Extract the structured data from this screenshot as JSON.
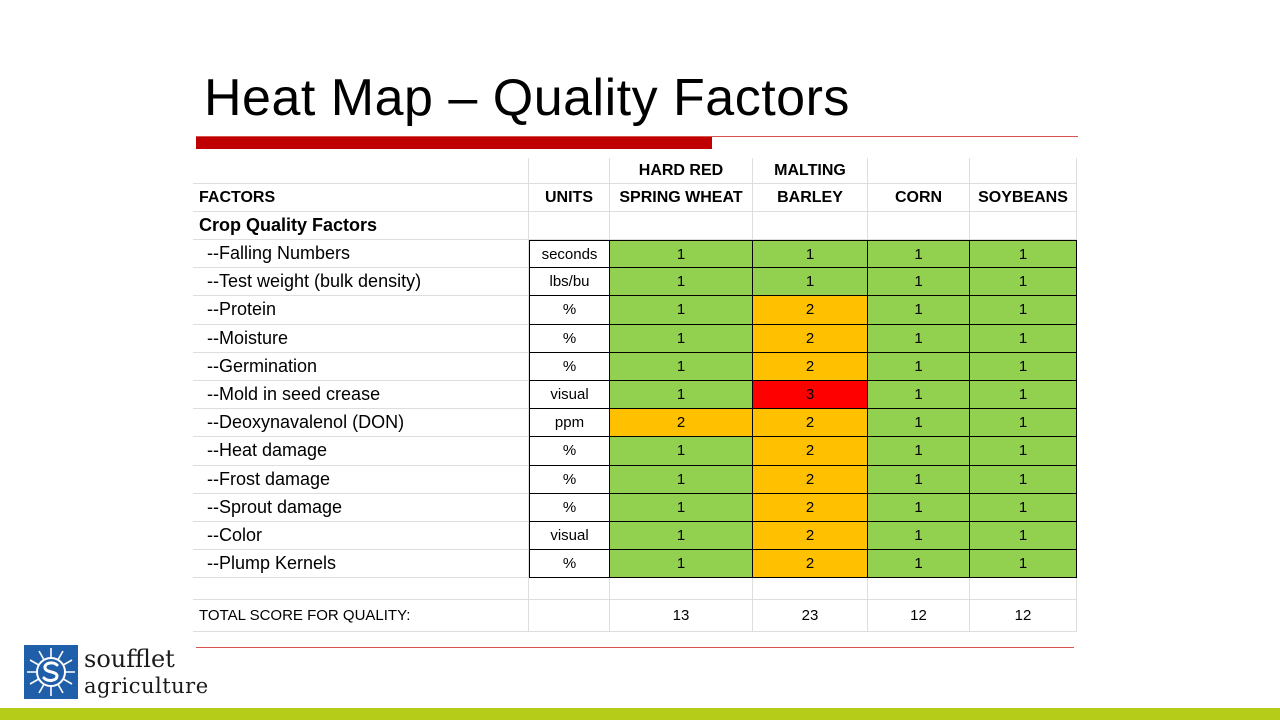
{
  "slide": {
    "title": "Heat Map – Quality Factors"
  },
  "colors": {
    "level_1": "#92d050",
    "level_2": "#ffc000",
    "level_3": "#ff0000",
    "title_bar": "#c00000",
    "footer_bar": "#b5cc18",
    "logo_blue": "#1f5ea8"
  },
  "chart_data": {
    "type": "heatmap",
    "header_row1": [
      "",
      "",
      "HARD RED",
      "MALTING",
      "",
      ""
    ],
    "header_row2": [
      "FACTORS",
      "UNITS",
      "SPRING WHEAT",
      "BARLEY",
      "CORN",
      "SOYBEANS"
    ],
    "section_label": "Crop Quality Factors",
    "rows": [
      {
        "factor": "--Falling Numbers",
        "unit": "seconds",
        "values": [
          1,
          1,
          1,
          1
        ]
      },
      {
        "factor": "--Test weight (bulk density)",
        "unit": "lbs/bu",
        "values": [
          1,
          1,
          1,
          1
        ]
      },
      {
        "factor": "--Protein",
        "unit": "%",
        "values": [
          1,
          2,
          1,
          1
        ]
      },
      {
        "factor": "--Moisture",
        "unit": "%",
        "values": [
          1,
          2,
          1,
          1
        ]
      },
      {
        "factor": "--Germination",
        "unit": "%",
        "values": [
          1,
          2,
          1,
          1
        ]
      },
      {
        "factor": "--Mold in seed crease",
        "unit": "visual",
        "values": [
          1,
          3,
          1,
          1
        ]
      },
      {
        "factor": "--Deoxynavalenol (DON)",
        "unit": "ppm",
        "values": [
          2,
          2,
          1,
          1
        ]
      },
      {
        "factor": "--Heat damage",
        "unit": "%",
        "values": [
          1,
          2,
          1,
          1
        ]
      },
      {
        "factor": "--Frost damage",
        "unit": "%",
        "values": [
          1,
          2,
          1,
          1
        ]
      },
      {
        "factor": "--Sprout damage",
        "unit": "%",
        "values": [
          1,
          2,
          1,
          1
        ]
      },
      {
        "factor": "--Color",
        "unit": "visual",
        "values": [
          1,
          2,
          1,
          1
        ]
      },
      {
        "factor": "--Plump Kernels",
        "unit": "%",
        "values": [
          1,
          2,
          1,
          1
        ]
      }
    ],
    "total_label": "TOTAL SCORE FOR QUALITY:",
    "totals": [
      13,
      23,
      12,
      12
    ]
  },
  "logo": {
    "line1": "soufflet",
    "line2": "agriculture"
  }
}
